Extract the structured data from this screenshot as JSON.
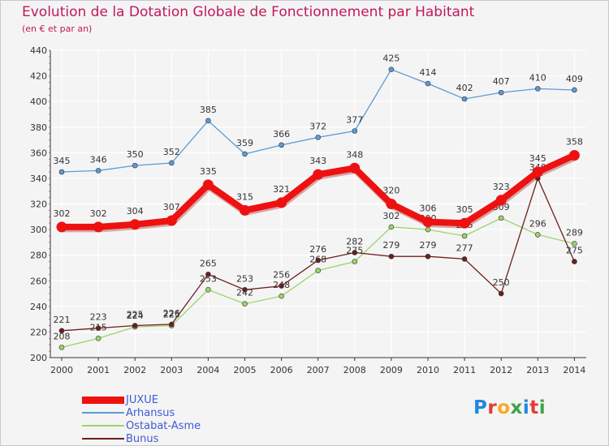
{
  "header": {
    "title": "Evolution de la Dotation Globale de Fonctionnement par Habitant",
    "subtitle": "(en € et par an)"
  },
  "logo": {
    "text": "Proxiti",
    "letter_colors": [
      "#1e88e5",
      "#e53935",
      "#f9a825",
      "#43a047",
      "#1e88e5",
      "#e53935",
      "#43a047"
    ]
  },
  "colors": {
    "background": "#f4f4f4",
    "grid": "#ffffff",
    "axis": "#333333",
    "title": "#c2185b",
    "legend_text": "#3d5cd6",
    "label_text": "#333333"
  },
  "chart_data": {
    "type": "line",
    "title": "Evolution de la Dotation Globale de Fonctionnement par Habitant",
    "subtitle": "(en € et par an)",
    "x": [
      "2000",
      "2001",
      "2002",
      "2003",
      "2004",
      "2005",
      "2006",
      "2007",
      "2008",
      "2009",
      "2010",
      "2011",
      "2012",
      "2013",
      "2014"
    ],
    "ylim": [
      200,
      440
    ],
    "yticks": [
      200,
      220,
      240,
      260,
      280,
      300,
      320,
      340,
      360,
      380,
      400,
      420,
      440
    ],
    "grid": true,
    "legend_position": "bottom-left",
    "series": [
      {
        "name": "JUXUE",
        "color": "#ee1111",
        "thick": true,
        "values": [
          302,
          302,
          304,
          307,
          335,
          315,
          321,
          343,
          348,
          320,
          306,
          305,
          323,
          345,
          358
        ]
      },
      {
        "name": "Arhansus",
        "color": "#5b9bd5",
        "thick": false,
        "values": [
          345,
          346,
          350,
          352,
          385,
          359,
          366,
          372,
          377,
          425,
          414,
          402,
          407,
          410,
          409
        ]
      },
      {
        "name": "Ostabat-Asme",
        "color": "#9ad46a",
        "thick": false,
        "values": [
          208,
          215,
          224,
          225,
          253,
          242,
          248,
          268,
          275,
          302,
          300,
          295,
          309,
          296,
          289
        ]
      },
      {
        "name": "Bunus",
        "color": "#6b1f1f",
        "thick": false,
        "values": [
          221,
          223,
          225,
          226,
          265,
          253,
          256,
          276,
          282,
          279,
          279,
          277,
          250,
          340,
          275
        ]
      }
    ]
  }
}
